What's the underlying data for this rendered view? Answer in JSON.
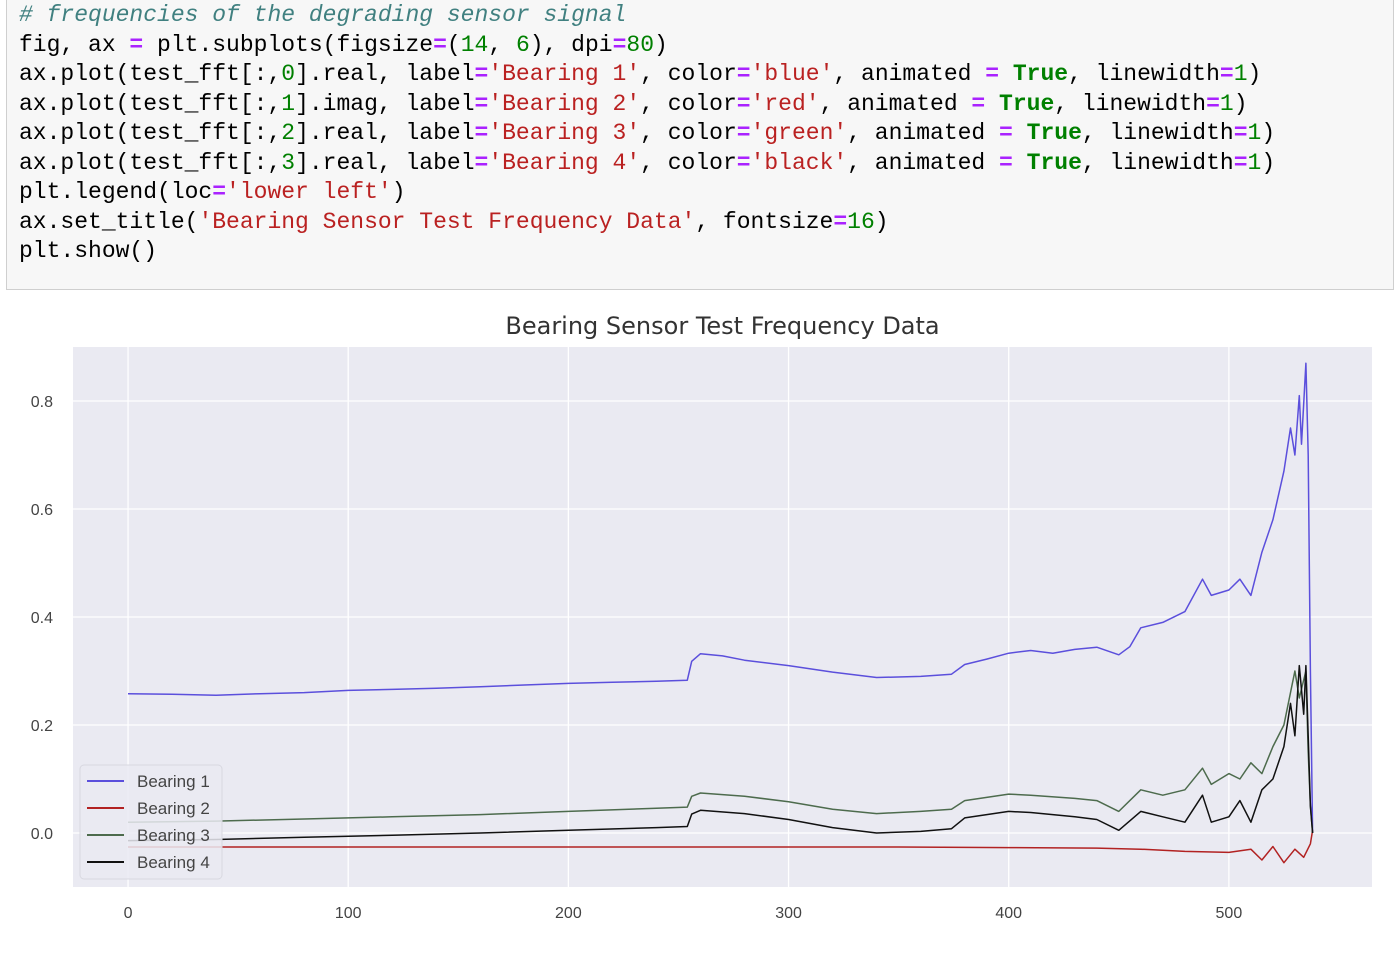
{
  "code_cell": {
    "lines": [
      [
        {
          "t": "# frequencies of the degrading sensor signal",
          "c": "comment"
        }
      ],
      [
        {
          "t": "fig, ax ",
          "c": ""
        },
        {
          "t": "=",
          "c": "op"
        },
        {
          "t": " plt.subplots(figsize",
          "c": ""
        },
        {
          "t": "=",
          "c": "op"
        },
        {
          "t": "(",
          "c": ""
        },
        {
          "t": "14",
          "c": "num"
        },
        {
          "t": ", ",
          "c": ""
        },
        {
          "t": "6",
          "c": "num"
        },
        {
          "t": "), dpi",
          "c": ""
        },
        {
          "t": "=",
          "c": "op"
        },
        {
          "t": "80",
          "c": "num"
        },
        {
          "t": ")",
          "c": ""
        }
      ],
      [
        {
          "t": "ax.plot(test_fft[:,",
          "c": ""
        },
        {
          "t": "0",
          "c": "num"
        },
        {
          "t": "].real, label",
          "c": ""
        },
        {
          "t": "=",
          "c": "op"
        },
        {
          "t": "'Bearing 1'",
          "c": "str"
        },
        {
          "t": ", color",
          "c": ""
        },
        {
          "t": "=",
          "c": "op"
        },
        {
          "t": "'blue'",
          "c": "str"
        },
        {
          "t": ", animated ",
          "c": ""
        },
        {
          "t": "=",
          "c": "op"
        },
        {
          "t": " ",
          "c": ""
        },
        {
          "t": "True",
          "c": "kw"
        },
        {
          "t": ", linewidth",
          "c": ""
        },
        {
          "t": "=",
          "c": "op"
        },
        {
          "t": "1",
          "c": "num"
        },
        {
          "t": ")",
          "c": ""
        }
      ],
      [
        {
          "t": "ax.plot(test_fft[:,",
          "c": ""
        },
        {
          "t": "1",
          "c": "num"
        },
        {
          "t": "].imag, label",
          "c": ""
        },
        {
          "t": "=",
          "c": "op"
        },
        {
          "t": "'Bearing 2'",
          "c": "str"
        },
        {
          "t": ", color",
          "c": ""
        },
        {
          "t": "=",
          "c": "op"
        },
        {
          "t": "'red'",
          "c": "str"
        },
        {
          "t": ", animated ",
          "c": ""
        },
        {
          "t": "=",
          "c": "op"
        },
        {
          "t": " ",
          "c": ""
        },
        {
          "t": "True",
          "c": "kw"
        },
        {
          "t": ", linewidth",
          "c": ""
        },
        {
          "t": "=",
          "c": "op"
        },
        {
          "t": "1",
          "c": "num"
        },
        {
          "t": ")",
          "c": ""
        }
      ],
      [
        {
          "t": "ax.plot(test_fft[:,",
          "c": ""
        },
        {
          "t": "2",
          "c": "num"
        },
        {
          "t": "].real, label",
          "c": ""
        },
        {
          "t": "=",
          "c": "op"
        },
        {
          "t": "'Bearing 3'",
          "c": "str"
        },
        {
          "t": ", color",
          "c": ""
        },
        {
          "t": "=",
          "c": "op"
        },
        {
          "t": "'green'",
          "c": "str"
        },
        {
          "t": ", animated ",
          "c": ""
        },
        {
          "t": "=",
          "c": "op"
        },
        {
          "t": " ",
          "c": ""
        },
        {
          "t": "True",
          "c": "kw"
        },
        {
          "t": ", linewidth",
          "c": ""
        },
        {
          "t": "=",
          "c": "op"
        },
        {
          "t": "1",
          "c": "num"
        },
        {
          "t": ")",
          "c": ""
        }
      ],
      [
        {
          "t": "ax.plot(test_fft[:,",
          "c": ""
        },
        {
          "t": "3",
          "c": "num"
        },
        {
          "t": "].real, label",
          "c": ""
        },
        {
          "t": "=",
          "c": "op"
        },
        {
          "t": "'Bearing 4'",
          "c": "str"
        },
        {
          "t": ", color",
          "c": ""
        },
        {
          "t": "=",
          "c": "op"
        },
        {
          "t": "'black'",
          "c": "str"
        },
        {
          "t": ", animated ",
          "c": ""
        },
        {
          "t": "=",
          "c": "op"
        },
        {
          "t": " ",
          "c": ""
        },
        {
          "t": "True",
          "c": "kw"
        },
        {
          "t": ", linewidth",
          "c": ""
        },
        {
          "t": "=",
          "c": "op"
        },
        {
          "t": "1",
          "c": "num"
        },
        {
          "t": ")",
          "c": ""
        }
      ],
      [
        {
          "t": "plt.legend(loc",
          "c": ""
        },
        {
          "t": "=",
          "c": "op"
        },
        {
          "t": "'lower left'",
          "c": "str"
        },
        {
          "t": ")",
          "c": ""
        }
      ],
      [
        {
          "t": "ax.set_title(",
          "c": ""
        },
        {
          "t": "'Bearing Sensor Test Frequency Data'",
          "c": "str"
        },
        {
          "t": ", fontsize",
          "c": ""
        },
        {
          "t": "=",
          "c": "op"
        },
        {
          "t": "16",
          "c": "num"
        },
        {
          "t": ")",
          "c": ""
        }
      ],
      [
        {
          "t": "plt.show()",
          "c": ""
        }
      ]
    ]
  },
  "chart_data": {
    "type": "line",
    "title": "Bearing Sensor Test Frequency Data",
    "xlabel": "",
    "ylabel": "",
    "xlim": [
      -25,
      565
    ],
    "ylim": [
      -0.1,
      0.9
    ],
    "xticks": [
      0,
      100,
      200,
      300,
      400,
      500
    ],
    "yticks": [
      0.0,
      0.2,
      0.4,
      0.6,
      0.8
    ],
    "xtick_labels": [
      "0",
      "100",
      "200",
      "300",
      "400",
      "500"
    ],
    "ytick_labels": [
      "0.0",
      "0.2",
      "0.4",
      "0.6",
      "0.8"
    ],
    "grid": true,
    "legend_position": "lower-left",
    "colors": {
      "plot_background": "#eaeaf2",
      "grid": "#ffffff",
      "tick_label": "#444444",
      "title": "#333333"
    },
    "series": [
      {
        "name": "Bearing 1",
        "color": "#5b4fdc",
        "points": [
          [
            0,
            0.258
          ],
          [
            20,
            0.257
          ],
          [
            40,
            0.255
          ],
          [
            60,
            0.258
          ],
          [
            80,
            0.26
          ],
          [
            100,
            0.264
          ],
          [
            120,
            0.266
          ],
          [
            140,
            0.268
          ],
          [
            160,
            0.271
          ],
          [
            180,
            0.274
          ],
          [
            200,
            0.277
          ],
          [
            220,
            0.279
          ],
          [
            240,
            0.281
          ],
          [
            254,
            0.283
          ],
          [
            256,
            0.318
          ],
          [
            260,
            0.332
          ],
          [
            270,
            0.328
          ],
          [
            280,
            0.32
          ],
          [
            300,
            0.31
          ],
          [
            320,
            0.298
          ],
          [
            340,
            0.288
          ],
          [
            360,
            0.29
          ],
          [
            374,
            0.294
          ],
          [
            380,
            0.312
          ],
          [
            390,
            0.322
          ],
          [
            400,
            0.333
          ],
          [
            410,
            0.338
          ],
          [
            420,
            0.333
          ],
          [
            430,
            0.34
          ],
          [
            440,
            0.344
          ],
          [
            450,
            0.33
          ],
          [
            455,
            0.345
          ],
          [
            460,
            0.38
          ],
          [
            470,
            0.39
          ],
          [
            480,
            0.41
          ],
          [
            488,
            0.47
          ],
          [
            492,
            0.44
          ],
          [
            500,
            0.45
          ],
          [
            505,
            0.47
          ],
          [
            510,
            0.44
          ],
          [
            515,
            0.52
          ],
          [
            520,
            0.58
          ],
          [
            525,
            0.67
          ],
          [
            528,
            0.75
          ],
          [
            530,
            0.7
          ],
          [
            532,
            0.81
          ],
          [
            533,
            0.72
          ],
          [
            535,
            0.87
          ],
          [
            536,
            0.7
          ],
          [
            537,
            0.3
          ],
          [
            538,
            0.0
          ]
        ]
      },
      {
        "name": "Bearing 2",
        "color": "#b22222",
        "points": [
          [
            0,
            -0.026
          ],
          [
            50,
            -0.026
          ],
          [
            100,
            -0.026
          ],
          [
            150,
            -0.026
          ],
          [
            200,
            -0.026
          ],
          [
            250,
            -0.026
          ],
          [
            300,
            -0.026
          ],
          [
            350,
            -0.026
          ],
          [
            400,
            -0.027
          ],
          [
            440,
            -0.028
          ],
          [
            460,
            -0.03
          ],
          [
            480,
            -0.034
          ],
          [
            500,
            -0.036
          ],
          [
            510,
            -0.03
          ],
          [
            515,
            -0.05
          ],
          [
            520,
            -0.025
          ],
          [
            525,
            -0.055
          ],
          [
            530,
            -0.03
          ],
          [
            534,
            -0.045
          ],
          [
            537,
            -0.02
          ],
          [
            538,
            0.005
          ]
        ]
      },
      {
        "name": "Bearing 3",
        "color": "#4d6b4d",
        "points": [
          [
            0,
            0.02
          ],
          [
            40,
            0.022
          ],
          [
            80,
            0.026
          ],
          [
            120,
            0.03
          ],
          [
            160,
            0.034
          ],
          [
            200,
            0.04
          ],
          [
            240,
            0.046
          ],
          [
            254,
            0.048
          ],
          [
            256,
            0.068
          ],
          [
            260,
            0.074
          ],
          [
            280,
            0.068
          ],
          [
            300,
            0.058
          ],
          [
            320,
            0.044
          ],
          [
            340,
            0.036
          ],
          [
            360,
            0.04
          ],
          [
            374,
            0.044
          ],
          [
            380,
            0.06
          ],
          [
            400,
            0.072
          ],
          [
            410,
            0.07
          ],
          [
            430,
            0.064
          ],
          [
            440,
            0.06
          ],
          [
            450,
            0.04
          ],
          [
            460,
            0.08
          ],
          [
            470,
            0.07
          ],
          [
            480,
            0.08
          ],
          [
            488,
            0.12
          ],
          [
            492,
            0.09
          ],
          [
            500,
            0.11
          ],
          [
            505,
            0.1
          ],
          [
            510,
            0.13
          ],
          [
            515,
            0.11
          ],
          [
            520,
            0.16
          ],
          [
            525,
            0.2
          ],
          [
            530,
            0.3
          ],
          [
            532,
            0.25
          ],
          [
            535,
            0.3
          ],
          [
            536,
            0.15
          ],
          [
            537,
            0.05
          ],
          [
            538,
            0.0
          ]
        ]
      },
      {
        "name": "Bearing 4",
        "color": "#111111",
        "points": [
          [
            0,
            -0.014
          ],
          [
            40,
            -0.012
          ],
          [
            80,
            -0.008
          ],
          [
            120,
            -0.004
          ],
          [
            160,
            0.0
          ],
          [
            200,
            0.005
          ],
          [
            240,
            0.01
          ],
          [
            254,
            0.012
          ],
          [
            256,
            0.035
          ],
          [
            260,
            0.042
          ],
          [
            280,
            0.036
          ],
          [
            300,
            0.025
          ],
          [
            320,
            0.01
          ],
          [
            340,
            0.0
          ],
          [
            360,
            0.003
          ],
          [
            374,
            0.008
          ],
          [
            380,
            0.028
          ],
          [
            400,
            0.04
          ],
          [
            410,
            0.038
          ],
          [
            430,
            0.03
          ],
          [
            440,
            0.025
          ],
          [
            450,
            0.005
          ],
          [
            460,
            0.04
          ],
          [
            470,
            0.03
          ],
          [
            480,
            0.02
          ],
          [
            488,
            0.07
          ],
          [
            492,
            0.02
          ],
          [
            500,
            0.03
          ],
          [
            505,
            0.06
          ],
          [
            510,
            0.02
          ],
          [
            515,
            0.08
          ],
          [
            520,
            0.1
          ],
          [
            525,
            0.16
          ],
          [
            528,
            0.24
          ],
          [
            530,
            0.18
          ],
          [
            532,
            0.31
          ],
          [
            534,
            0.22
          ],
          [
            535,
            0.31
          ],
          [
            536,
            0.18
          ],
          [
            537,
            0.05
          ],
          [
            538,
            0.0
          ]
        ]
      }
    ]
  }
}
